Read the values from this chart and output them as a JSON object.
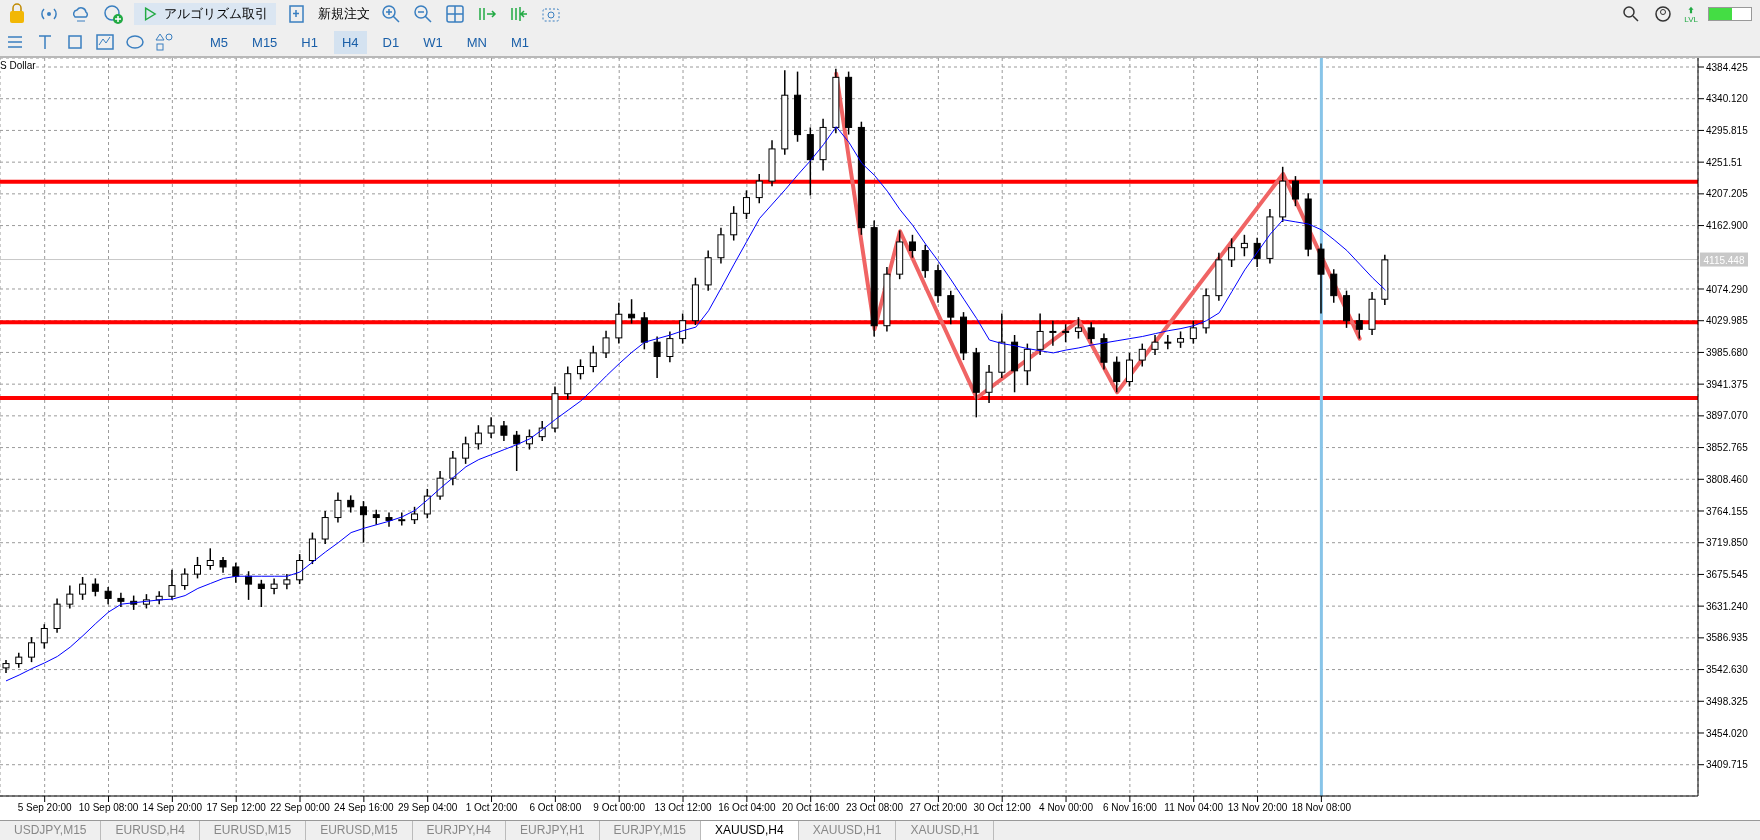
{
  "chart_data": {
    "type": "candlestick",
    "categories": [
      null,
      null,
      null,
      "5 Sep 20:00",
      null,
      null,
      null,
      null,
      "10 Sep 08:00",
      null,
      null,
      null,
      null,
      "14 Sep 20:00",
      null,
      null,
      null,
      null,
      "17 Sep 12:00",
      null,
      null,
      null,
      null,
      "22 Sep 00:00",
      null,
      null,
      null,
      null,
      "24 Sep 16:00",
      null,
      null,
      null,
      null,
      "29 Sep 04:00",
      null,
      null,
      null,
      null,
      "1 Oct 20:00",
      null,
      null,
      null,
      null,
      "6 Oct 08:00",
      null,
      null,
      null,
      null,
      "9 Oct 00:00",
      null,
      null,
      null,
      null,
      "13 Oct 12:00",
      null,
      null,
      null,
      null,
      "16 Oct 04:00",
      null,
      null,
      null,
      null,
      "20 Oct 16:00",
      null,
      null,
      null,
      null,
      "23 Oct 08:00",
      null,
      null,
      null,
      null,
      "27 Oct 20:00",
      null,
      null,
      null,
      null,
      "30 Oct 12:00",
      null,
      null,
      null,
      null,
      "4 Nov 00:00",
      null,
      null,
      null,
      null,
      "6 Nov 16:00",
      null,
      null,
      null,
      null,
      "11 Nov 04:00",
      null,
      null,
      null,
      null,
      "13 Nov 20:00",
      null,
      null,
      null,
      null,
      "18 Nov 08:00",
      null,
      null,
      null,
      null,
      null,
      null,
      null,
      null,
      null,
      null,
      null,
      null,
      null,
      null,
      null,
      null,
      null,
      null,
      null,
      null,
      null,
      null,
      null,
      null,
      null,
      null,
      null,
      null,
      null
    ],
    "color": "#000000",
    "ohlc": [
      [
        3545,
        3556,
        3538,
        3551
      ],
      [
        3551,
        3566,
        3545,
        3560
      ],
      [
        3560,
        3588,
        3553,
        3580
      ],
      [
        3580,
        3606,
        3572,
        3600
      ],
      [
        3600,
        3642,
        3594,
        3634
      ],
      [
        3634,
        3660,
        3628,
        3648
      ],
      [
        3648,
        3672,
        3640,
        3662
      ],
      [
        3662,
        3670,
        3645,
        3652
      ],
      [
        3652,
        3658,
        3634,
        3642
      ],
      [
        3642,
        3650,
        3630,
        3638
      ],
      [
        3638,
        3646,
        3626,
        3634
      ],
      [
        3634,
        3648,
        3628,
        3640
      ],
      [
        3640,
        3652,
        3634,
        3645
      ],
      [
        3645,
        3682,
        3640,
        3660
      ],
      [
        3660,
        3684,
        3654,
        3676
      ],
      [
        3676,
        3700,
        3670,
        3688
      ],
      [
        3688,
        3712,
        3682,
        3695
      ],
      [
        3695,
        3700,
        3678,
        3686
      ],
      [
        3686,
        3692,
        3664,
        3673
      ],
      [
        3673,
        3680,
        3640,
        3662
      ],
      [
        3662,
        3668,
        3630,
        3656
      ],
      [
        3656,
        3670,
        3648,
        3662
      ],
      [
        3662,
        3676,
        3655,
        3668
      ],
      [
        3668,
        3704,
        3662,
        3695
      ],
      [
        3695,
        3734,
        3690,
        3725
      ],
      [
        3725,
        3764,
        3718,
        3755
      ],
      [
        3755,
        3790,
        3748,
        3779
      ],
      [
        3779,
        3786,
        3762,
        3770
      ],
      [
        3770,
        3778,
        3720,
        3759
      ],
      [
        3759,
        3766,
        3745,
        3755
      ],
      [
        3755,
        3762,
        3742,
        3751
      ],
      [
        3751,
        3762,
        3744,
        3752
      ],
      [
        3752,
        3770,
        3746,
        3760
      ],
      [
        3760,
        3795,
        3754,
        3785
      ],
      [
        3785,
        3820,
        3780,
        3810
      ],
      [
        3810,
        3848,
        3800,
        3838
      ],
      [
        3838,
        3868,
        3830,
        3858
      ],
      [
        3858,
        3884,
        3850,
        3873
      ],
      [
        3873,
        3895,
        3866,
        3883
      ],
      [
        3883,
        3890,
        3862,
        3870
      ],
      [
        3870,
        3876,
        3820,
        3858
      ],
      [
        3858,
        3878,
        3850,
        3868
      ],
      [
        3868,
        3890,
        3862,
        3880
      ],
      [
        3880,
        3938,
        3874,
        3928
      ],
      [
        3928,
        3966,
        3920,
        3956
      ],
      [
        3956,
        3976,
        3948,
        3966
      ],
      [
        3966,
        3995,
        3958,
        3985
      ],
      [
        3985,
        4016,
        3978,
        4006
      ],
      [
        4006,
        4055,
        3998,
        4039
      ],
      [
        4039,
        4060,
        4026,
        4034
      ],
      [
        4034,
        4042,
        3990,
        4000
      ],
      [
        4000,
        4008,
        3950,
        3980
      ],
      [
        3980,
        4015,
        3972,
        4005
      ],
      [
        4005,
        4040,
        3998,
        4030
      ],
      [
        4030,
        4090,
        4024,
        4080
      ],
      [
        4080,
        4128,
        4072,
        4118
      ],
      [
        4118,
        4160,
        4110,
        4150
      ],
      [
        4150,
        4190,
        4142,
        4180
      ],
      [
        4180,
        4212,
        4172,
        4202
      ],
      [
        4202,
        4235,
        4194,
        4225
      ],
      [
        4225,
        4282,
        4218,
        4270
      ],
      [
        4270,
        4380,
        4262,
        4345
      ],
      [
        4345,
        4378,
        4280,
        4290
      ],
      [
        4290,
        4300,
        4205,
        4255
      ],
      [
        4255,
        4312,
        4240,
        4300
      ],
      [
        4300,
        4382,
        4292,
        4370
      ],
      [
        4370,
        4378,
        4290,
        4300
      ],
      [
        4300,
        4308,
        4150,
        4160
      ],
      [
        4160,
        4170,
        4008,
        4023
      ],
      [
        4023,
        4105,
        4015,
        4095
      ],
      [
        4095,
        4156,
        4088,
        4140
      ],
      [
        4140,
        4150,
        4118,
        4128
      ],
      [
        4128,
        4136,
        4090,
        4100
      ],
      [
        4100,
        4108,
        4055,
        4065
      ],
      [
        4065,
        4072,
        4025,
        4035
      ],
      [
        4035,
        4042,
        3975,
        3985
      ],
      [
        3985,
        3992,
        3895,
        3930
      ],
      [
        3930,
        3968,
        3915,
        3958
      ],
      [
        3958,
        4040,
        3950,
        4000
      ],
      [
        4000,
        4010,
        3930,
        3960
      ],
      [
        3960,
        3998,
        3940,
        3990
      ],
      [
        3990,
        4040,
        3982,
        4015
      ],
      [
        4015,
        4030,
        3995,
        4015
      ],
      [
        4015,
        4025,
        4000,
        4015
      ],
      [
        4015,
        4035,
        4005,
        4020
      ],
      [
        4020,
        4028,
        3998,
        4005
      ],
      [
        4005,
        4012,
        3962,
        3972
      ],
      [
        3972,
        3980,
        3930,
        3945
      ],
      [
        3945,
        3985,
        3938,
        3975
      ],
      [
        3975,
        3998,
        3966,
        3990
      ],
      [
        3990,
        4010,
        3982,
        4000
      ],
      [
        4000,
        4010,
        3990,
        4000
      ],
      [
        4000,
        4015,
        3992,
        4005
      ],
      [
        4005,
        4030,
        3998,
        4020
      ],
      [
        4020,
        4075,
        4012,
        4065
      ],
      [
        4065,
        4125,
        4058,
        4115
      ],
      [
        4115,
        4145,
        4105,
        4132
      ],
      [
        4132,
        4150,
        4120,
        4138
      ],
      [
        4138,
        4146,
        4105,
        4117
      ],
      [
        4117,
        4186,
        4110,
        4175
      ],
      [
        4175,
        4245,
        4168,
        4225
      ],
      [
        4225,
        4232,
        4190,
        4200
      ],
      [
        4200,
        4208,
        4120,
        4130
      ],
      [
        4130,
        4138,
        4040,
        4095
      ],
      [
        4095,
        4102,
        4055,
        4065
      ],
      [
        4065,
        4072,
        4020,
        4030
      ],
      [
        4030,
        4040,
        4005,
        4018
      ],
      [
        4018,
        4070,
        4010,
        4060
      ],
      [
        4060,
        4122,
        4052,
        4115
      ],
      null,
      null,
      null,
      null,
      null,
      null,
      null,
      null,
      null,
      null,
      null,
      null,
      null,
      null,
      null,
      null,
      null,
      null,
      null,
      null,
      null,
      null,
      null,
      null
    ],
    "series": [
      {
        "type": "line",
        "color": "#0000ff",
        "values": [
          3527,
          3535,
          3544,
          3552,
          3561,
          3574,
          3590,
          3607,
          3623,
          3634,
          3636,
          3638,
          3640,
          3641,
          3646,
          3656,
          3663,
          3670,
          3673,
          3673,
          3673,
          3673,
          3673,
          3679,
          3693,
          3707,
          3720,
          3734,
          3740,
          3745,
          3750,
          3756,
          3765,
          3780,
          3796,
          3811,
          3826,
          3836,
          3843,
          3850,
          3857,
          3865,
          3878,
          3892,
          3905,
          3918,
          3935,
          3953,
          3970,
          3986,
          4000,
          4005,
          4010,
          4016,
          4021,
          4044,
          4076,
          4109,
          4141,
          4173,
          4193,
          4213,
          4234,
          4254,
          4276,
          4301,
          4279,
          4250,
          4233,
          4211,
          4185,
          4163,
          4137,
          4113,
          4087,
          4060,
          4033,
          4003,
          3998,
          3995,
          3991,
          3988,
          3985,
          3989,
          3992,
          3996,
          3999,
          4002,
          4005,
          4008,
          4012,
          4016,
          4019,
          4023,
          4030,
          4041,
          4071,
          4101,
          4126,
          4151,
          4171,
          4168,
          4165,
          4157,
          4143,
          4128,
          4109,
          4090,
          4073,
          null,
          null,
          null,
          null,
          null,
          null,
          null,
          null,
          null,
          null,
          null,
          null,
          null,
          null,
          null,
          null,
          null,
          null,
          null,
          null,
          null,
          null,
          null,
          null
        ]
      },
      {
        "type": "line",
        "color": "#f06464",
        "values": [
          null,
          null,
          null,
          null,
          null,
          null,
          null,
          null,
          null,
          null,
          null,
          null,
          null,
          null,
          null,
          null,
          null,
          null,
          null,
          null,
          null,
          null,
          null,
          null,
          null,
          null,
          null,
          null,
          null,
          null,
          null,
          null,
          null,
          null,
          null,
          null,
          null,
          null,
          null,
          null,
          null,
          null,
          null,
          null,
          null,
          null,
          null,
          null,
          null,
          null,
          null,
          null,
          null,
          null,
          null,
          null,
          null,
          null,
          null,
          null,
          null,
          null,
          null,
          null,
          null,
          4375,
          null,
          null,
          4018,
          null,
          4155,
          null,
          null,
          null,
          null,
          null,
          3922,
          null,
          null,
          null,
          null,
          null,
          null,
          null,
          4030,
          null,
          null,
          3930,
          null,
          null,
          null,
          null,
          null,
          null,
          null,
          null,
          null,
          null,
          null,
          null,
          4235,
          null,
          null,
          null,
          null,
          null,
          4005,
          null,
          null,
          null,
          null,
          null,
          null,
          null,
          null,
          null,
          null,
          null,
          null,
          null,
          null,
          null,
          null,
          null,
          null,
          null,
          null,
          null,
          null,
          null,
          null,
          null,
          null
        ]
      }
    ],
    "ylim": [
      3366,
      4397
    ],
    "yticks": [
      4384.425,
      {
        "value": 4340.12,
        "label": "4340.120"
      },
      4295.815,
      4251.51,
      4207.205,
      {
        "value": 4162.9,
        "label": "4162.900"
      },
      {
        "value": 4074.29,
        "label": "4074.290"
      },
      4029.985,
      {
        "value": 3985.68,
        "label": "3985.680"
      },
      3941.375,
      {
        "value": 3897.07,
        "label": "3897.070"
      },
      3852.765,
      {
        "value": 3808.46,
        "label": "3808.460"
      },
      3764.155,
      {
        "value": 3719.85,
        "label": "3719.850"
      },
      3675.545,
      {
        "value": 3631.24,
        "label": "3631.240"
      },
      3586.935,
      {
        "value": 3542.63,
        "label": "3542.630"
      },
      3498.325,
      {
        "value": 3454.02,
        "label": "3454.020"
      },
      3409.715
    ],
    "grid": true,
    "marker": "none",
    "line_style": "solid",
    "ref_lines": [
      {
        "axis": "y",
        "value": 4224,
        "color": "#ff0000"
      },
      {
        "axis": "y",
        "value": 4028,
        "color": "#ff0000"
      },
      {
        "axis": "y",
        "value": 3922,
        "color": "#ff0000"
      },
      {
        "axis": "y",
        "value": 4115.448,
        "label": "4115.448",
        "color": "#c8c8c8"
      },
      {
        "axis": "x",
        "value": "18 Nov 08:00",
        "color": "#87c4e8"
      }
    ],
    "annotations": [
      "アルゴリズム取引",
      "新規注文",
      "M5",
      "M15",
      "H1",
      "H4",
      "D1",
      "W1",
      "MN",
      "M1",
      "USDJPY,M15",
      "EURUSD,H4",
      "EURUSD,M15",
      "EURUSD,M15",
      "EURJPY,H4",
      "EURJPY,H1",
      "EURJPY,M15",
      "XAUUSD,H4",
      "XAUUSD,H1",
      "XAUUSD,H1",
      "S Dollar",
      "LVL"
    ]
  }
}
